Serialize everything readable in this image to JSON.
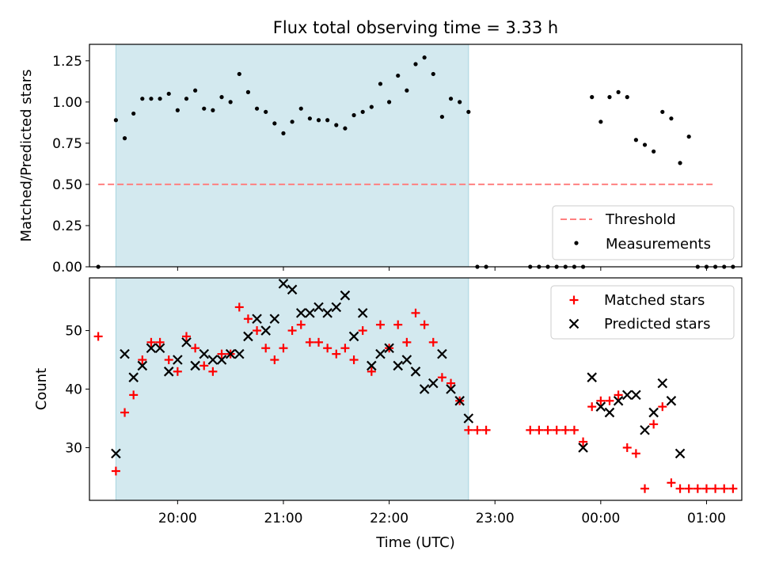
{
  "title": "Flux total observing time = 3.33 h",
  "chart_data": [
    {
      "type": "scatter",
      "panel": "top",
      "title": "Flux total observing time = 3.33 h",
      "xlabel": "",
      "ylabel": "Matched/Predicted stars",
      "ylim": [
        0,
        1.35
      ],
      "yticks": [
        "0.00",
        "0.25",
        "0.50",
        "0.75",
        "1.00",
        "1.25"
      ],
      "ytick_values": [
        0,
        0.25,
        0.5,
        0.75,
        1.0,
        1.25
      ],
      "xlim": [
        "19:10",
        "01:20"
      ],
      "shaded_interval": [
        "19:25",
        "22:45"
      ],
      "threshold": {
        "name": "Threshold",
        "value": 0.5,
        "x_start": "19:15",
        "x_end": "01:05"
      },
      "legend_position": "lower right",
      "legend": [
        "Threshold",
        "Measurements"
      ],
      "series": [
        {
          "name": "Measurements",
          "points": [
            [
              "19:15",
              0.0
            ],
            [
              "19:25",
              0.89
            ],
            [
              "19:30",
              0.78
            ],
            [
              "19:35",
              0.93
            ],
            [
              "19:40",
              1.02
            ],
            [
              "19:45",
              1.02
            ],
            [
              "19:50",
              1.02
            ],
            [
              "19:55",
              1.05
            ],
            [
              "20:00",
              0.95
            ],
            [
              "20:05",
              1.02
            ],
            [
              "20:10",
              1.07
            ],
            [
              "20:15",
              0.96
            ],
            [
              "20:20",
              0.95
            ],
            [
              "20:25",
              1.03
            ],
            [
              "20:30",
              1.0
            ],
            [
              "20:35",
              1.17
            ],
            [
              "20:40",
              1.06
            ],
            [
              "20:45",
              0.96
            ],
            [
              "20:50",
              0.94
            ],
            [
              "20:55",
              0.87
            ],
            [
              "21:00",
              0.81
            ],
            [
              "21:05",
              0.88
            ],
            [
              "21:10",
              0.96
            ],
            [
              "21:15",
              0.9
            ],
            [
              "21:20",
              0.89
            ],
            [
              "21:25",
              0.89
            ],
            [
              "21:30",
              0.86
            ],
            [
              "21:35",
              0.84
            ],
            [
              "21:40",
              0.92
            ],
            [
              "21:45",
              0.94
            ],
            [
              "21:50",
              0.97
            ],
            [
              "21:55",
              1.11
            ],
            [
              "22:00",
              1.0
            ],
            [
              "22:05",
              1.16
            ],
            [
              "22:10",
              1.07
            ],
            [
              "22:15",
              1.23
            ],
            [
              "22:20",
              1.27
            ],
            [
              "22:25",
              1.17
            ],
            [
              "22:30",
              0.91
            ],
            [
              "22:35",
              1.02
            ],
            [
              "22:40",
              1.0
            ],
            [
              "22:45",
              0.94
            ],
            [
              "22:50",
              0.0
            ],
            [
              "22:55",
              0.0
            ],
            [
              "23:20",
              0.0
            ],
            [
              "23:25",
              0.0
            ],
            [
              "23:30",
              0.0
            ],
            [
              "23:35",
              0.0
            ],
            [
              "23:40",
              0.0
            ],
            [
              "23:45",
              0.0
            ],
            [
              "23:50",
              0.0
            ],
            [
              "23:55",
              1.03
            ],
            [
              "00:00",
              0.88
            ],
            [
              "00:05",
              1.03
            ],
            [
              "00:10",
              1.06
            ],
            [
              "00:15",
              1.03
            ],
            [
              "00:20",
              0.77
            ],
            [
              "00:25",
              0.74
            ],
            [
              "00:30",
              0.7
            ],
            [
              "00:35",
              0.94
            ],
            [
              "00:40",
              0.9
            ],
            [
              "00:45",
              0.63
            ],
            [
              "00:50",
              0.79
            ],
            [
              "00:55",
              0.0
            ],
            [
              "01:00",
              0.0
            ],
            [
              "01:05",
              0.0
            ],
            [
              "01:10",
              0.0
            ],
            [
              "01:15",
              0.0
            ]
          ]
        }
      ]
    },
    {
      "type": "scatter",
      "panel": "bottom",
      "xlabel": "Time (UTC)",
      "ylabel": "Count",
      "ylim": [
        21,
        59
      ],
      "yticks": [
        "30",
        "40",
        "50"
      ],
      "ytick_values": [
        30,
        40,
        50
      ],
      "xlim": [
        "19:10",
        "01:20"
      ],
      "xticks": [
        "20:00",
        "21:00",
        "22:00",
        "23:00",
        "00:00",
        "01:00"
      ],
      "shaded_interval": [
        "19:25",
        "22:45"
      ],
      "legend_position": "upper right",
      "legend": [
        "Matched stars",
        "Predicted stars"
      ],
      "series": [
        {
          "name": "Matched stars",
          "color": "#ff0000",
          "marker": "+",
          "points": [
            [
              "19:15",
              49
            ],
            [
              "19:25",
              26
            ],
            [
              "19:30",
              36
            ],
            [
              "19:35",
              39
            ],
            [
              "19:40",
              45
            ],
            [
              "19:45",
              48
            ],
            [
              "19:50",
              48
            ],
            [
              "19:55",
              45
            ],
            [
              "20:00",
              43
            ],
            [
              "20:05",
              49
            ],
            [
              "20:10",
              47
            ],
            [
              "20:15",
              44
            ],
            [
              "20:20",
              43
            ],
            [
              "20:25",
              46
            ],
            [
              "20:30",
              46
            ],
            [
              "20:35",
              54
            ],
            [
              "20:40",
              52
            ],
            [
              "20:45",
              50
            ],
            [
              "20:50",
              47
            ],
            [
              "20:55",
              45
            ],
            [
              "21:00",
              47
            ],
            [
              "21:05",
              50
            ],
            [
              "21:10",
              51
            ],
            [
              "21:15",
              48
            ],
            [
              "21:20",
              48
            ],
            [
              "21:25",
              47
            ],
            [
              "21:30",
              46
            ],
            [
              "21:35",
              47
            ],
            [
              "21:40",
              45
            ],
            [
              "21:45",
              50
            ],
            [
              "21:50",
              43
            ],
            [
              "21:55",
              51
            ],
            [
              "22:00",
              47
            ],
            [
              "22:05",
              51
            ],
            [
              "22:10",
              48
            ],
            [
              "22:15",
              53
            ],
            [
              "22:20",
              51
            ],
            [
              "22:25",
              48
            ],
            [
              "22:30",
              42
            ],
            [
              "22:35",
              41
            ],
            [
              "22:40",
              38
            ],
            [
              "22:45",
              33
            ],
            [
              "22:50",
              33
            ],
            [
              "22:55",
              33
            ],
            [
              "23:20",
              33
            ],
            [
              "23:25",
              33
            ],
            [
              "23:30",
              33
            ],
            [
              "23:35",
              33
            ],
            [
              "23:40",
              33
            ],
            [
              "23:45",
              33
            ],
            [
              "23:50",
              31
            ],
            [
              "23:55",
              37
            ],
            [
              "00:00",
              38
            ],
            [
              "00:05",
              38
            ],
            [
              "00:10",
              39
            ],
            [
              "00:15",
              30
            ],
            [
              "00:20",
              29
            ],
            [
              "00:25",
              23
            ],
            [
              "00:30",
              34
            ],
            [
              "00:35",
              37
            ],
            [
              "00:40",
              24
            ],
            [
              "00:45",
              23
            ],
            [
              "00:50",
              23
            ],
            [
              "00:55",
              23
            ],
            [
              "01:00",
              23
            ],
            [
              "01:05",
              23
            ],
            [
              "01:10",
              23
            ],
            [
              "01:15",
              23
            ]
          ]
        },
        {
          "name": "Predicted stars",
          "color": "#000000",
          "marker": "x",
          "points": [
            [
              "19:25",
              29
            ],
            [
              "19:30",
              46
            ],
            [
              "19:35",
              42
            ],
            [
              "19:40",
              44
            ],
            [
              "19:45",
              47
            ],
            [
              "19:50",
              47
            ],
            [
              "19:55",
              43
            ],
            [
              "20:00",
              45
            ],
            [
              "20:05",
              48
            ],
            [
              "20:10",
              44
            ],
            [
              "20:15",
              46
            ],
            [
              "20:20",
              45
            ],
            [
              "20:25",
              45
            ],
            [
              "20:30",
              46
            ],
            [
              "20:35",
              46
            ],
            [
              "20:40",
              49
            ],
            [
              "20:45",
              52
            ],
            [
              "20:50",
              50
            ],
            [
              "20:55",
              52
            ],
            [
              "21:00",
              58
            ],
            [
              "21:05",
              57
            ],
            [
              "21:10",
              53
            ],
            [
              "21:15",
              53
            ],
            [
              "21:20",
              54
            ],
            [
              "21:25",
              53
            ],
            [
              "21:30",
              54
            ],
            [
              "21:35",
              56
            ],
            [
              "21:40",
              49
            ],
            [
              "21:45",
              53
            ],
            [
              "21:50",
              44
            ],
            [
              "21:55",
              46
            ],
            [
              "22:00",
              47
            ],
            [
              "22:05",
              44
            ],
            [
              "22:10",
              45
            ],
            [
              "22:15",
              43
            ],
            [
              "22:20",
              40
            ],
            [
              "22:25",
              41
            ],
            [
              "22:30",
              46
            ],
            [
              "22:35",
              40
            ],
            [
              "22:40",
              38
            ],
            [
              "22:45",
              35
            ],
            [
              "23:50",
              30
            ],
            [
              "23:55",
              42
            ],
            [
              "00:00",
              37
            ],
            [
              "00:05",
              36
            ],
            [
              "00:10",
              38
            ],
            [
              "00:15",
              39
            ],
            [
              "00:20",
              39
            ],
            [
              "00:25",
              33
            ],
            [
              "00:30",
              36
            ],
            [
              "00:35",
              41
            ],
            [
              "00:40",
              38
            ],
            [
              "00:45",
              29
            ]
          ]
        }
      ]
    }
  ],
  "colors": {
    "shade": "#d3e9ef",
    "threshold": "#ff8080",
    "measurements": "#000000",
    "matched": "#ff0000",
    "predicted": "#000000"
  }
}
